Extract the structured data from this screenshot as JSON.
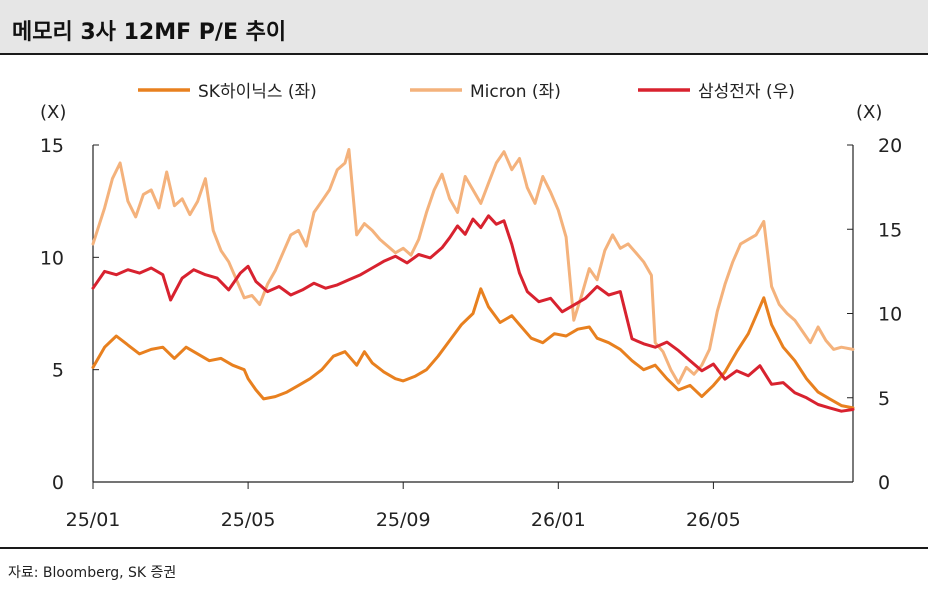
{
  "title": "메모리 3사 12MF P/E 추이",
  "source": "자료: Bloomberg, SK 증권",
  "chart_data": {
    "type": "line",
    "left_axis": {
      "unit": "(X)",
      "min": 0,
      "max": 15,
      "ticks": [
        "0",
        "5",
        "10",
        "15"
      ]
    },
    "right_axis": {
      "unit": "(X)",
      "min": 0,
      "max": 20,
      "ticks": [
        "0",
        "5",
        "10",
        "15",
        "20"
      ]
    },
    "x_axis": {
      "ticks": [
        "25/01",
        "25/05",
        "25/09",
        "26/01",
        "26/05"
      ],
      "tick_months": [
        0,
        4,
        8,
        12,
        16
      ],
      "max_month": 19.6
    },
    "legend_position": "top",
    "colors": {
      "sk_hynix": "#e8801f",
      "micron": "#f4b27c",
      "samsung": "#d8222f"
    },
    "series": [
      {
        "name": "SK하이닉스 (좌)",
        "axis": "left",
        "key": "sk_hynix",
        "points": [
          [
            0,
            5.1
          ],
          [
            0.3,
            6.0
          ],
          [
            0.6,
            6.5
          ],
          [
            0.9,
            6.1
          ],
          [
            1.2,
            5.7
          ],
          [
            1.5,
            5.9
          ],
          [
            1.8,
            6.0
          ],
          [
            2.1,
            5.5
          ],
          [
            2.4,
            6.0
          ],
          [
            2.7,
            5.7
          ],
          [
            3.0,
            5.4
          ],
          [
            3.3,
            5.5
          ],
          [
            3.6,
            5.2
          ],
          [
            3.9,
            5.0
          ],
          [
            4.0,
            4.6
          ],
          [
            4.2,
            4.1
          ],
          [
            4.4,
            3.7
          ],
          [
            4.7,
            3.8
          ],
          [
            5.0,
            4.0
          ],
          [
            5.3,
            4.3
          ],
          [
            5.6,
            4.6
          ],
          [
            5.9,
            5.0
          ],
          [
            6.2,
            5.6
          ],
          [
            6.5,
            5.8
          ],
          [
            6.8,
            5.2
          ],
          [
            7.0,
            5.8
          ],
          [
            7.2,
            5.3
          ],
          [
            7.5,
            4.9
          ],
          [
            7.8,
            4.6
          ],
          [
            8.0,
            4.5
          ],
          [
            8.3,
            4.7
          ],
          [
            8.6,
            5.0
          ],
          [
            8.9,
            5.6
          ],
          [
            9.2,
            6.3
          ],
          [
            9.5,
            7.0
          ],
          [
            9.8,
            7.5
          ],
          [
            10.0,
            8.6
          ],
          [
            10.2,
            7.8
          ],
          [
            10.5,
            7.1
          ],
          [
            10.8,
            7.4
          ],
          [
            11.0,
            7.0
          ],
          [
            11.3,
            6.4
          ],
          [
            11.6,
            6.2
          ],
          [
            11.9,
            6.6
          ],
          [
            12.2,
            6.5
          ],
          [
            12.5,
            6.8
          ],
          [
            12.8,
            6.9
          ],
          [
            13.0,
            6.4
          ],
          [
            13.3,
            6.2
          ],
          [
            13.6,
            5.9
          ],
          [
            13.9,
            5.4
          ],
          [
            14.2,
            5.0
          ],
          [
            14.5,
            5.2
          ],
          [
            14.8,
            4.6
          ],
          [
            15.1,
            4.1
          ],
          [
            15.4,
            4.3
          ],
          [
            15.7,
            3.8
          ],
          [
            16.0,
            4.3
          ],
          [
            16.3,
            4.9
          ],
          [
            16.6,
            5.8
          ],
          [
            16.9,
            6.6
          ],
          [
            17.1,
            7.4
          ],
          [
            17.3,
            8.2
          ],
          [
            17.5,
            7.0
          ],
          [
            17.8,
            6.0
          ],
          [
            18.1,
            5.4
          ],
          [
            18.4,
            4.6
          ],
          [
            18.7,
            4.0
          ],
          [
            19.0,
            3.7
          ],
          [
            19.3,
            3.4
          ],
          [
            19.6,
            3.3
          ]
        ]
      },
      {
        "name": "Micron (좌)",
        "axis": "left",
        "key": "micron",
        "points": [
          [
            0,
            10.6
          ],
          [
            0.3,
            12.2
          ],
          [
            0.5,
            13.5
          ],
          [
            0.7,
            14.2
          ],
          [
            0.9,
            12.5
          ],
          [
            1.1,
            11.8
          ],
          [
            1.3,
            12.8
          ],
          [
            1.5,
            13.0
          ],
          [
            1.7,
            12.2
          ],
          [
            1.9,
            13.8
          ],
          [
            2.1,
            12.3
          ],
          [
            2.3,
            12.6
          ],
          [
            2.5,
            11.9
          ],
          [
            2.7,
            12.5
          ],
          [
            2.9,
            13.5
          ],
          [
            3.1,
            11.2
          ],
          [
            3.3,
            10.3
          ],
          [
            3.5,
            9.8
          ],
          [
            3.7,
            9.0
          ],
          [
            3.9,
            8.2
          ],
          [
            4.1,
            8.3
          ],
          [
            4.3,
            7.9
          ],
          [
            4.5,
            8.8
          ],
          [
            4.7,
            9.4
          ],
          [
            4.9,
            10.2
          ],
          [
            5.1,
            11.0
          ],
          [
            5.3,
            11.2
          ],
          [
            5.5,
            10.5
          ],
          [
            5.7,
            12.0
          ],
          [
            5.9,
            12.5
          ],
          [
            6.1,
            13.0
          ],
          [
            6.3,
            13.9
          ],
          [
            6.5,
            14.2
          ],
          [
            6.6,
            14.8
          ],
          [
            6.8,
            11.0
          ],
          [
            7.0,
            11.5
          ],
          [
            7.2,
            11.2
          ],
          [
            7.4,
            10.8
          ],
          [
            7.6,
            10.5
          ],
          [
            7.8,
            10.2
          ],
          [
            8.0,
            10.4
          ],
          [
            8.2,
            10.1
          ],
          [
            8.4,
            10.8
          ],
          [
            8.6,
            12.0
          ],
          [
            8.8,
            13.0
          ],
          [
            9.0,
            13.7
          ],
          [
            9.2,
            12.6
          ],
          [
            9.4,
            12.0
          ],
          [
            9.6,
            13.6
          ],
          [
            9.8,
            13.0
          ],
          [
            10.0,
            12.4
          ],
          [
            10.2,
            13.3
          ],
          [
            10.4,
            14.2
          ],
          [
            10.6,
            14.7
          ],
          [
            10.8,
            13.9
          ],
          [
            11.0,
            14.4
          ],
          [
            11.2,
            13.1
          ],
          [
            11.4,
            12.4
          ],
          [
            11.6,
            13.6
          ],
          [
            11.8,
            12.9
          ],
          [
            12.0,
            12.1
          ],
          [
            12.2,
            10.9
          ],
          [
            12.4,
            7.2
          ],
          [
            12.6,
            8.3
          ],
          [
            12.8,
            9.5
          ],
          [
            13.0,
            9.0
          ],
          [
            13.2,
            10.3
          ],
          [
            13.4,
            11.0
          ],
          [
            13.6,
            10.4
          ],
          [
            13.8,
            10.6
          ],
          [
            14.0,
            10.2
          ],
          [
            14.2,
            9.8
          ],
          [
            14.4,
            9.2
          ],
          [
            14.5,
            6.2
          ],
          [
            14.7,
            5.8
          ],
          [
            14.9,
            5.0
          ],
          [
            15.1,
            4.4
          ],
          [
            15.3,
            5.1
          ],
          [
            15.5,
            4.8
          ],
          [
            15.7,
            5.2
          ],
          [
            15.9,
            5.9
          ],
          [
            16.1,
            7.6
          ],
          [
            16.3,
            8.8
          ],
          [
            16.5,
            9.8
          ],
          [
            16.7,
            10.6
          ],
          [
            16.9,
            10.8
          ],
          [
            17.1,
            11.0
          ],
          [
            17.3,
            11.6
          ],
          [
            17.5,
            8.7
          ],
          [
            17.7,
            7.9
          ],
          [
            17.9,
            7.5
          ],
          [
            18.1,
            7.2
          ],
          [
            18.3,
            6.7
          ],
          [
            18.5,
            6.2
          ],
          [
            18.7,
            6.9
          ],
          [
            18.9,
            6.3
          ],
          [
            19.1,
            5.9
          ],
          [
            19.3,
            6.0
          ],
          [
            19.6,
            5.9
          ]
        ]
      },
      {
        "name": "삼성전자 (우)",
        "axis": "right",
        "key": "samsung",
        "points": [
          [
            0,
            11.5
          ],
          [
            0.3,
            12.5
          ],
          [
            0.6,
            12.3
          ],
          [
            0.9,
            12.6
          ],
          [
            1.2,
            12.4
          ],
          [
            1.5,
            12.7
          ],
          [
            1.8,
            12.3
          ],
          [
            2.0,
            10.8
          ],
          [
            2.3,
            12.1
          ],
          [
            2.6,
            12.6
          ],
          [
            2.9,
            12.3
          ],
          [
            3.2,
            12.1
          ],
          [
            3.5,
            11.4
          ],
          [
            3.8,
            12.4
          ],
          [
            4.0,
            12.8
          ],
          [
            4.2,
            11.9
          ],
          [
            4.5,
            11.3
          ],
          [
            4.8,
            11.6
          ],
          [
            5.1,
            11.1
          ],
          [
            5.4,
            11.4
          ],
          [
            5.7,
            11.8
          ],
          [
            6.0,
            11.5
          ],
          [
            6.3,
            11.7
          ],
          [
            6.6,
            12.0
          ],
          [
            6.9,
            12.3
          ],
          [
            7.2,
            12.7
          ],
          [
            7.5,
            13.1
          ],
          [
            7.8,
            13.4
          ],
          [
            8.1,
            13.0
          ],
          [
            8.4,
            13.5
          ],
          [
            8.7,
            13.3
          ],
          [
            9.0,
            13.9
          ],
          [
            9.2,
            14.5
          ],
          [
            9.4,
            15.2
          ],
          [
            9.6,
            14.7
          ],
          [
            9.8,
            15.6
          ],
          [
            10.0,
            15.1
          ],
          [
            10.2,
            15.8
          ],
          [
            10.4,
            15.3
          ],
          [
            10.6,
            15.5
          ],
          [
            10.8,
            14.1
          ],
          [
            11.0,
            12.4
          ],
          [
            11.2,
            11.3
          ],
          [
            11.5,
            10.7
          ],
          [
            11.8,
            10.9
          ],
          [
            12.1,
            10.1
          ],
          [
            12.4,
            10.5
          ],
          [
            12.7,
            10.9
          ],
          [
            13.0,
            11.6
          ],
          [
            13.3,
            11.1
          ],
          [
            13.6,
            11.3
          ],
          [
            13.9,
            8.5
          ],
          [
            14.2,
            8.2
          ],
          [
            14.5,
            8.0
          ],
          [
            14.8,
            8.3
          ],
          [
            15.1,
            7.8
          ],
          [
            15.4,
            7.2
          ],
          [
            15.7,
            6.6
          ],
          [
            16.0,
            7.0
          ],
          [
            16.3,
            6.1
          ],
          [
            16.6,
            6.6
          ],
          [
            16.9,
            6.3
          ],
          [
            17.2,
            6.9
          ],
          [
            17.5,
            5.8
          ],
          [
            17.8,
            5.9
          ],
          [
            18.1,
            5.3
          ],
          [
            18.4,
            5.0
          ],
          [
            18.7,
            4.6
          ],
          [
            19.0,
            4.4
          ],
          [
            19.3,
            4.2
          ],
          [
            19.6,
            4.3
          ]
        ]
      }
    ]
  }
}
